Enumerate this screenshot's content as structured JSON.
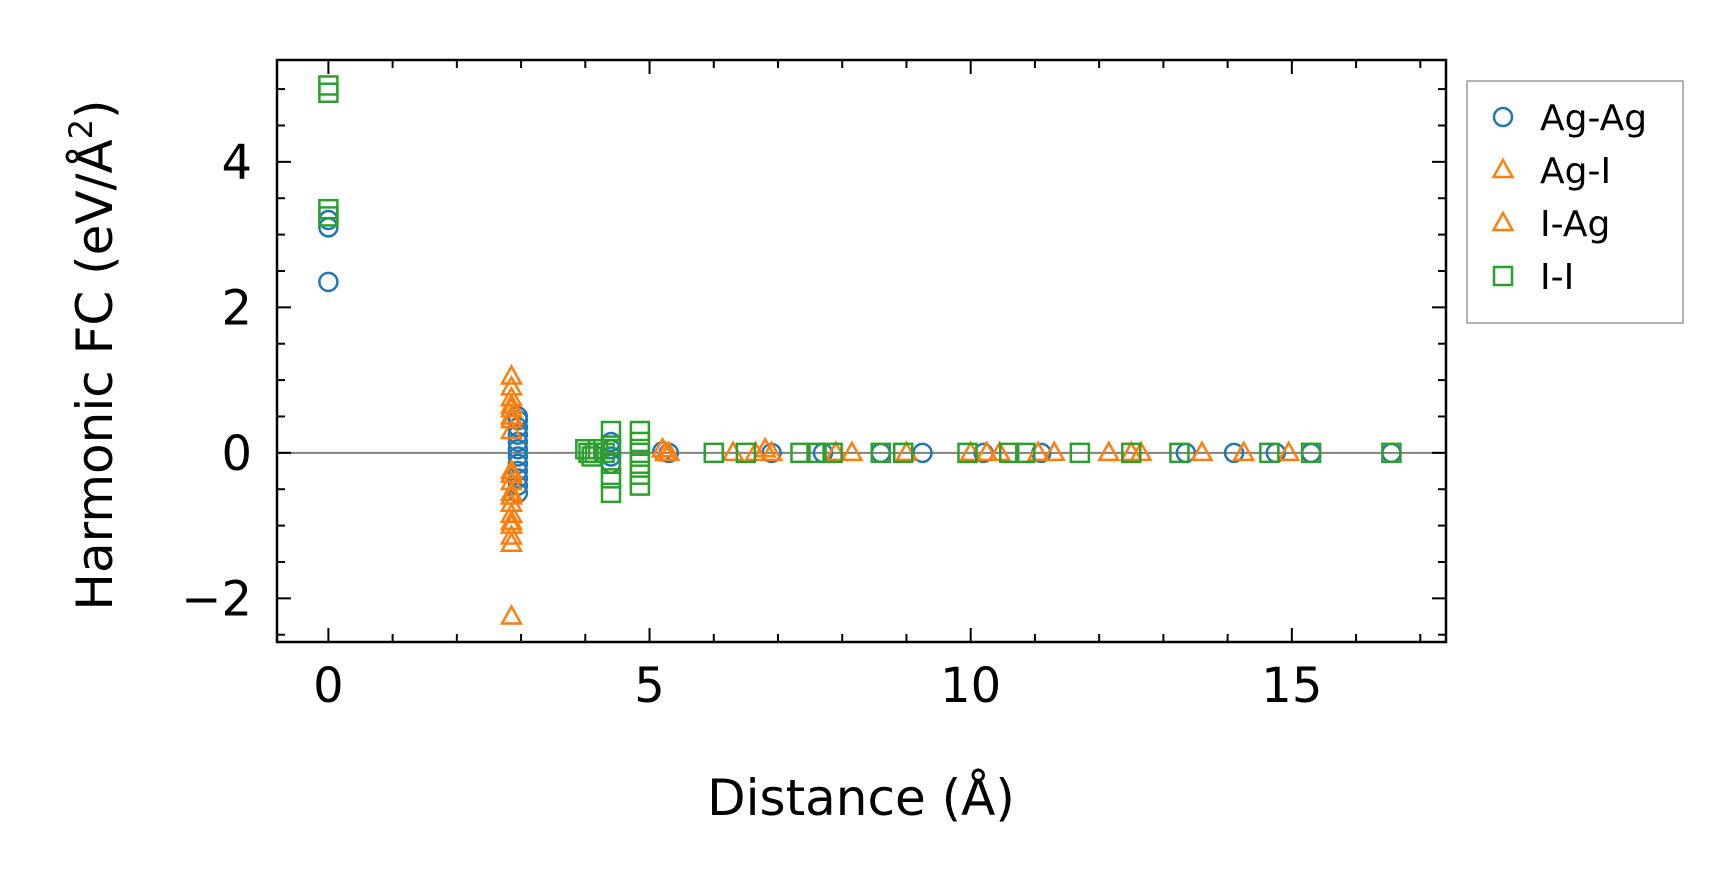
{
  "chart_data": {
    "type": "scatter",
    "title": "",
    "xlabel": "Distance (Å)",
    "ylabel_main": "Harmonic FC (eV/Å",
    "ylabel_sup": "2",
    "ylabel_close": ")",
    "xlim": [
      -0.8,
      17.4
    ],
    "ylim": [
      -2.6,
      5.4
    ],
    "xticks": [
      0,
      5,
      10,
      15
    ],
    "xtick_labels": [
      "0",
      "5",
      "10",
      "15"
    ],
    "yticks": [
      -2,
      0,
      2,
      4
    ],
    "ytick_labels": [
      "−2",
      "0",
      "2",
      "4"
    ],
    "zero_line": true,
    "legend_position": "outside-right-top",
    "series": [
      {
        "name": "Ag-Ag",
        "marker": "circle",
        "color": "#1f77b4",
        "points": [
          [
            0,
            3.2
          ],
          [
            0,
            3.1
          ],
          [
            0,
            2.35
          ],
          [
            2.95,
            0.5
          ],
          [
            2.95,
            0.45
          ],
          [
            2.95,
            0.35
          ],
          [
            2.95,
            0.25
          ],
          [
            2.95,
            0.15
          ],
          [
            2.95,
            0.05
          ],
          [
            2.95,
            -0.05
          ],
          [
            2.95,
            -0.15
          ],
          [
            2.95,
            -0.25
          ],
          [
            2.95,
            -0.35
          ],
          [
            2.95,
            -0.45
          ],
          [
            2.95,
            -0.55
          ],
          [
            4.4,
            0.15
          ],
          [
            4.4,
            0.05
          ],
          [
            4.4,
            -0.05
          ],
          [
            4.4,
            -0.15
          ],
          [
            5.2,
            0.02
          ],
          [
            5.3,
            0.0
          ],
          [
            6.9,
            0.0
          ],
          [
            7.7,
            0.0
          ],
          [
            8.6,
            0.0
          ],
          [
            9.25,
            0.0
          ],
          [
            10.2,
            0.0
          ],
          [
            11.1,
            0.0
          ],
          [
            13.35,
            0.0
          ],
          [
            14.1,
            0.0
          ],
          [
            14.75,
            0.0
          ],
          [
            15.3,
            0.0
          ],
          [
            16.55,
            0.0
          ]
        ]
      },
      {
        "name": "Ag-I",
        "marker": "triangle",
        "color": "#ff7f0e",
        "points": [
          [
            2.85,
            1.05
          ],
          [
            2.85,
            0.9
          ],
          [
            2.85,
            0.75
          ],
          [
            2.85,
            0.6
          ],
          [
            2.85,
            0.45
          ],
          [
            2.85,
            0.3
          ],
          [
            2.85,
            -0.25
          ],
          [
            2.85,
            -0.4
          ],
          [
            2.85,
            -0.55
          ],
          [
            2.85,
            -0.7
          ],
          [
            2.85,
            -0.85
          ],
          [
            2.85,
            -1.0
          ],
          [
            2.85,
            -1.15
          ],
          [
            2.85,
            -1.25
          ],
          [
            2.85,
            -2.25
          ],
          [
            5.2,
            0.05
          ],
          [
            5.25,
            0.0
          ],
          [
            6.3,
            0.0
          ],
          [
            6.8,
            0.05
          ],
          [
            7.9,
            0.0
          ],
          [
            8.15,
            0.0
          ],
          [
            10.0,
            0.0
          ],
          [
            10.45,
            0.0
          ],
          [
            11.3,
            0.0
          ],
          [
            12.15,
            0.0
          ],
          [
            12.65,
            0.0
          ],
          [
            13.6,
            0.0
          ],
          [
            14.25,
            0.0
          ],
          [
            14.95,
            0.0
          ]
        ]
      },
      {
        "name": "I-Ag",
        "marker": "triangle",
        "color": "#ff7f0e",
        "points": [
          [
            2.85,
            0.65
          ],
          [
            2.85,
            0.5
          ],
          [
            2.85,
            -0.3
          ],
          [
            2.85,
            -0.6
          ],
          [
            2.85,
            -0.95
          ],
          [
            5.3,
            0.0
          ],
          [
            6.65,
            0.0
          ],
          [
            6.9,
            0.0
          ],
          [
            9.0,
            0.0
          ],
          [
            10.25,
            0.0
          ],
          [
            11.05,
            0.0
          ],
          [
            12.5,
            0.0
          ]
        ]
      },
      {
        "name": "I-I",
        "marker": "square",
        "color": "#2ca02c",
        "points": [
          [
            0,
            5.05
          ],
          [
            0,
            4.95
          ],
          [
            0,
            3.35
          ],
          [
            0,
            3.25
          ],
          [
            4.0,
            0.05
          ],
          [
            4.05,
            0.0
          ],
          [
            4.1,
            -0.05
          ],
          [
            4.15,
            0.0
          ],
          [
            4.2,
            0.05
          ],
          [
            4.3,
            0.0
          ],
          [
            4.4,
            0.3
          ],
          [
            4.4,
            0.1
          ],
          [
            4.4,
            -0.15
          ],
          [
            4.4,
            -0.35
          ],
          [
            4.4,
            -0.55
          ],
          [
            4.85,
            0.3
          ],
          [
            4.85,
            0.15
          ],
          [
            4.85,
            0.0
          ],
          [
            4.85,
            -0.15
          ],
          [
            4.85,
            -0.3
          ],
          [
            4.85,
            -0.45
          ],
          [
            6.0,
            0.0
          ],
          [
            6.5,
            0.0
          ],
          [
            7.35,
            0.0
          ],
          [
            7.6,
            0.0
          ],
          [
            7.85,
            0.0
          ],
          [
            8.6,
            0.0
          ],
          [
            8.95,
            0.0
          ],
          [
            9.95,
            0.0
          ],
          [
            10.6,
            0.0
          ],
          [
            10.85,
            0.0
          ],
          [
            11.7,
            0.0
          ],
          [
            12.5,
            0.0
          ],
          [
            13.25,
            0.0
          ],
          [
            14.65,
            0.0
          ],
          [
            15.3,
            0.0
          ],
          [
            16.55,
            0.0
          ]
        ]
      }
    ]
  }
}
